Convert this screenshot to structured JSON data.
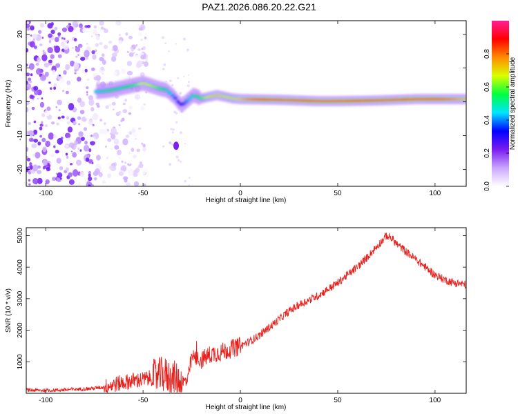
{
  "title": "PAZ1.2026.086.20.22.G21",
  "chart_data": [
    {
      "type": "heatmap",
      "xlabel": "Height of straight line (km)",
      "ylabel": "Frequency (Hz)",
      "xlim": [
        -110,
        116
      ],
      "ylim": [
        -25,
        24
      ],
      "xticks": [
        -100,
        -50,
        0,
        50,
        100
      ],
      "yticks": [
        -20,
        -10,
        0,
        10,
        20
      ],
      "colorbar": {
        "label": "Normalized spectral amplitude",
        "range": [
          0,
          1
        ],
        "ticks": [
          "0.0",
          "0.2",
          "0.4",
          "0.6",
          "0.8"
        ],
        "colors": [
          "#ffffff",
          "#c9a6ff",
          "#7a1cf0",
          "#0000ff",
          "#00e5ff",
          "#00ff40",
          "#d8ff00",
          "#ff8c00",
          "#ff0000",
          "#ff1e96"
        ]
      },
      "ridge": {
        "x": [
          -74,
          -70,
          -66,
          -62,
          -58,
          -54,
          -50,
          -46,
          -42,
          -38,
          -34,
          -32,
          -30,
          -28,
          -26,
          -24,
          -22,
          -20,
          -16,
          -12,
          -8,
          -4,
          0,
          10,
          20,
          30,
          40,
          50,
          60,
          70,
          80,
          90,
          100,
          110,
          116
        ],
        "y": [
          3,
          3.2,
          3.5,
          4,
          4.5,
          5,
          5.5,
          4.8,
          4,
          3.5,
          1.5,
          0,
          -1,
          0,
          1,
          2,
          1.5,
          1,
          1.5,
          2,
          1.5,
          1,
          0.8,
          0.7,
          0.6,
          0.4,
          0.2,
          0.2,
          0.3,
          0.4,
          0.6,
          0.8,
          0.8,
          0.8,
          0.8
        ],
        "amplitude": [
          0.45,
          0.5,
          0.55,
          0.5,
          0.55,
          0.6,
          0.7,
          0.65,
          0.6,
          0.5,
          0.4,
          0.35,
          0.35,
          0.4,
          0.45,
          0.5,
          0.55,
          0.6,
          0.7,
          0.75,
          0.7,
          0.7,
          0.75,
          0.9,
          0.85,
          0.85,
          0.95,
          0.95,
          0.9,
          0.85,
          0.85,
          0.95,
          0.9,
          0.8,
          0.75
        ]
      },
      "noise_region": {
        "xmin": -110,
        "xmax": -62,
        "amplitude_max": 0.25
      }
    },
    {
      "type": "line",
      "xlabel": "Height of straight line (km)",
      "ylabel": "SNR (10 * v/v)",
      "xlim": [
        -110,
        116
      ],
      "ylim": [
        0,
        5250
      ],
      "xticks": [
        -100,
        -50,
        0,
        50,
        100
      ],
      "yticks": [
        1000,
        2000,
        3000,
        4000,
        5000
      ],
      "color": "#e8201c",
      "series": [
        {
          "name": "SNR",
          "x": [
            -110,
            -100,
            -90,
            -80,
            -75,
            -70,
            -65,
            -60,
            -55,
            -50,
            -45,
            -40,
            -35,
            -30,
            -27,
            -25,
            -20,
            -15,
            -10,
            -5,
            0,
            5,
            10,
            15,
            20,
            25,
            30,
            35,
            40,
            45,
            50,
            55,
            60,
            65,
            70,
            73,
            75,
            78,
            80,
            85,
            90,
            95,
            100,
            105,
            110,
            116
          ],
          "y": [
            100,
            90,
            110,
            140,
            160,
            200,
            280,
            340,
            400,
            430,
            500,
            600,
            500,
            350,
            400,
            1150,
            1050,
            1250,
            1300,
            1400,
            1500,
            1650,
            1850,
            2100,
            2350,
            2600,
            2800,
            2950,
            3100,
            3300,
            3500,
            3750,
            4000,
            4300,
            4650,
            4850,
            5000,
            4900,
            4750,
            4500,
            4250,
            4000,
            3750,
            3600,
            3500,
            3450
          ]
        }
      ]
    }
  ]
}
